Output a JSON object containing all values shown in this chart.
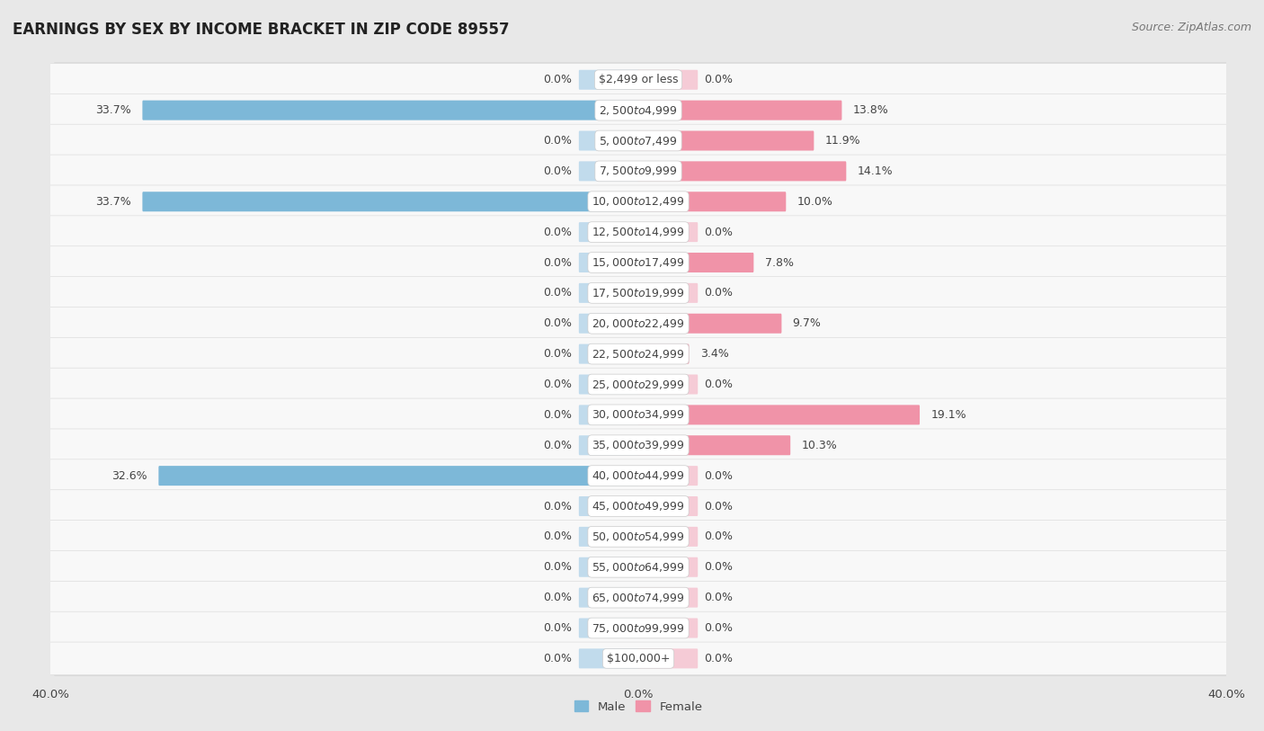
{
  "title": "EARNINGS BY SEX BY INCOME BRACKET IN ZIP CODE 89557",
  "source": "Source: ZipAtlas.com",
  "categories": [
    "$2,499 or less",
    "$2,500 to $4,999",
    "$5,000 to $7,499",
    "$7,500 to $9,999",
    "$10,000 to $12,499",
    "$12,500 to $14,999",
    "$15,000 to $17,499",
    "$17,500 to $19,999",
    "$20,000 to $22,499",
    "$22,500 to $24,999",
    "$25,000 to $29,999",
    "$30,000 to $34,999",
    "$35,000 to $39,999",
    "$40,000 to $44,999",
    "$45,000 to $49,999",
    "$50,000 to $54,999",
    "$55,000 to $64,999",
    "$65,000 to $74,999",
    "$75,000 to $99,999",
    "$100,000+"
  ],
  "male_values": [
    0.0,
    33.7,
    0.0,
    0.0,
    33.7,
    0.0,
    0.0,
    0.0,
    0.0,
    0.0,
    0.0,
    0.0,
    0.0,
    32.6,
    0.0,
    0.0,
    0.0,
    0.0,
    0.0,
    0.0
  ],
  "female_values": [
    0.0,
    13.8,
    11.9,
    14.1,
    10.0,
    0.0,
    7.8,
    0.0,
    9.7,
    3.4,
    0.0,
    19.1,
    10.3,
    0.0,
    0.0,
    0.0,
    0.0,
    0.0,
    0.0,
    0.0
  ],
  "male_color": "#7db8d8",
  "female_color": "#f093a8",
  "male_color_stub": "#aacfe8",
  "female_color_stub": "#f4b8c8",
  "male_label": "Male",
  "female_label": "Female",
  "xlim": 40.0,
  "background_color": "#e8e8e8",
  "row_color": "#f8f8f8",
  "row_edge_color": "#cccccc",
  "title_fontsize": 12,
  "source_fontsize": 9,
  "label_fontsize": 9,
  "value_fontsize": 9
}
